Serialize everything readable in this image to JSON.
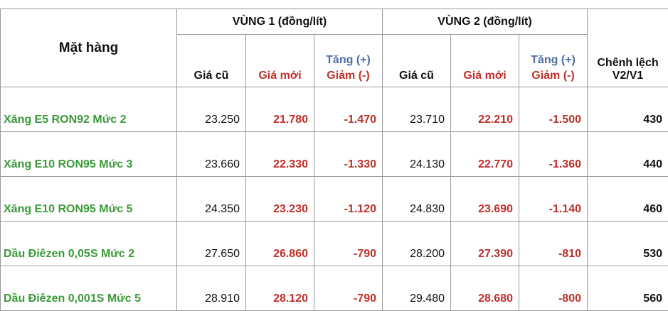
{
  "table": {
    "header": {
      "item": "Mặt hàng",
      "regions": [
        {
          "title": "VÙNG 1 (đồng/lít)",
          "old": "Giá cũ",
          "new": "Giá mới",
          "increase": "Tăng (+)",
          "decrease": "Giảm (-)"
        },
        {
          "title": "VÙNG 2 (đồng/lít)",
          "old": "Giá cũ",
          "new": "Giá mới",
          "increase": "Tăng (+)",
          "decrease": "Giảm (-)"
        }
      ],
      "difference": "Chênh lệch V2/V1"
    },
    "rows": [
      [
        "Xăng E5 RON92 Mức 2",
        "23.250",
        "21.780",
        "-1.470",
        "23.710",
        "22.210",
        "-1.500",
        "430"
      ],
      [
        "Xăng E10 RON95 Mức 3",
        "23.660",
        "22.330",
        "-1.330",
        "24.130",
        "22.770",
        "-1.360",
        "440"
      ],
      [
        "Xăng E10 RON95 Mức 5",
        "24.350",
        "23.230",
        "-1.120",
        "24.830",
        "23.690",
        "-1.140",
        "460"
      ],
      [
        "Dầu Điêzen 0,05S Mức 2",
        "27.650",
        "26.860",
        "-790",
        "28.200",
        "27.390",
        "-810",
        "530"
      ],
      [
        "Dầu Điêzen 0,001S Mức 5",
        "28.910",
        "28.120",
        "-790",
        "29.480",
        "28.680",
        "-800",
        "560"
      ]
    ]
  }
}
